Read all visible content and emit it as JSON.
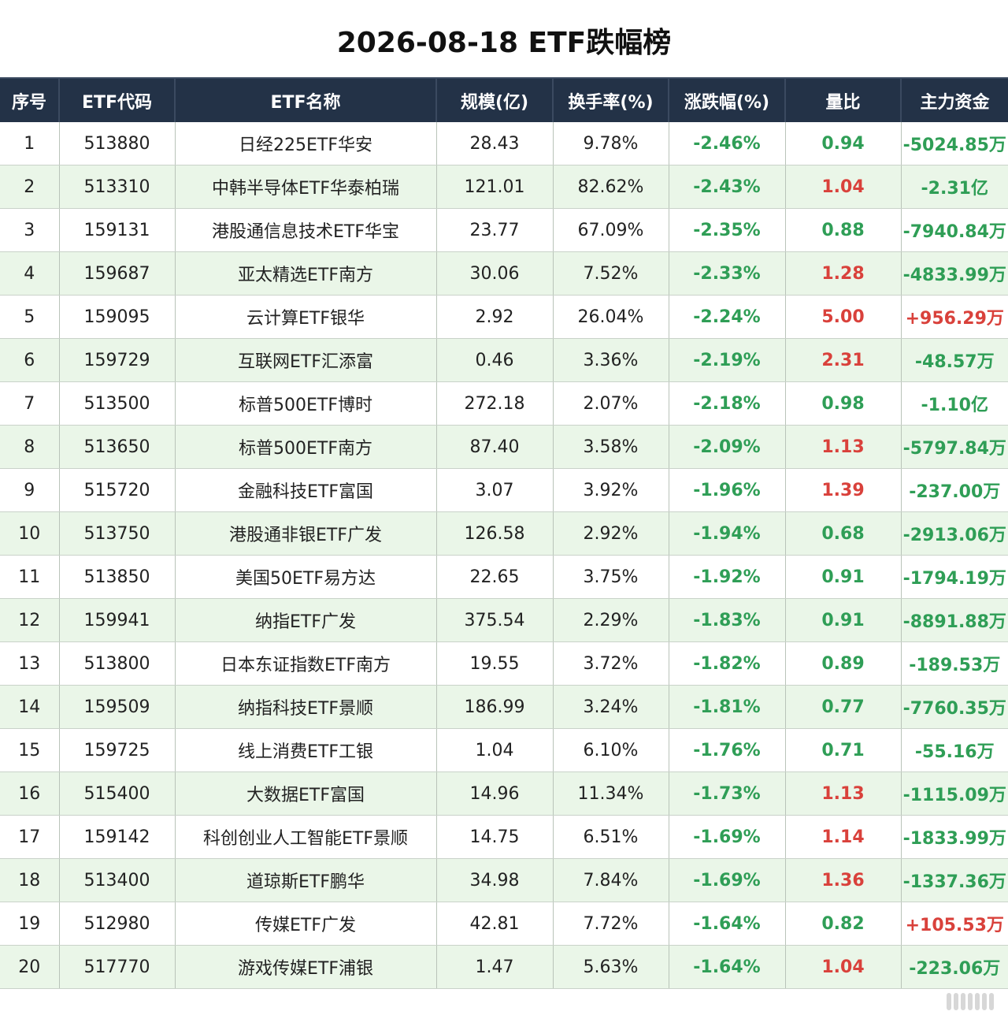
{
  "title": "2026-08-18 ETF跌幅榜",
  "colors": {
    "header_bg": "#233247",
    "down": "#2f9e56",
    "up": "#d9413b",
    "row_alt": "#eaf6e8"
  },
  "columns": [
    "序号",
    "ETF代码",
    "ETF名称",
    "规模(亿)",
    "换手率(%)",
    "涨跌幅(%)",
    "量比",
    "主力资金"
  ],
  "rows": [
    {
      "rank": "1",
      "code": "513880",
      "name": "日经225ETF华安",
      "scale": "28.43",
      "turnover": "9.78%",
      "change": "-2.46%",
      "ratio": "0.94",
      "ratio_up": false,
      "flow": "-5024.85万",
      "flow_up": false
    },
    {
      "rank": "2",
      "code": "513310",
      "name": "中韩半导体ETF华泰柏瑞",
      "scale": "121.01",
      "turnover": "82.62%",
      "change": "-2.43%",
      "ratio": "1.04",
      "ratio_up": true,
      "flow": "-2.31亿",
      "flow_up": false
    },
    {
      "rank": "3",
      "code": "159131",
      "name": "港股通信息技术ETF华宝",
      "scale": "23.77",
      "turnover": "67.09%",
      "change": "-2.35%",
      "ratio": "0.88",
      "ratio_up": false,
      "flow": "-7940.84万",
      "flow_up": false
    },
    {
      "rank": "4",
      "code": "159687",
      "name": "亚太精选ETF南方",
      "scale": "30.06",
      "turnover": "7.52%",
      "change": "-2.33%",
      "ratio": "1.28",
      "ratio_up": true,
      "flow": "-4833.99万",
      "flow_up": false
    },
    {
      "rank": "5",
      "code": "159095",
      "name": "云计算ETF银华",
      "scale": "2.92",
      "turnover": "26.04%",
      "change": "-2.24%",
      "ratio": "5.00",
      "ratio_up": true,
      "flow": "+956.29万",
      "flow_up": true
    },
    {
      "rank": "6",
      "code": "159729",
      "name": "互联网ETF汇添富",
      "scale": "0.46",
      "turnover": "3.36%",
      "change": "-2.19%",
      "ratio": "2.31",
      "ratio_up": true,
      "flow": "-48.57万",
      "flow_up": false
    },
    {
      "rank": "7",
      "code": "513500",
      "name": "标普500ETF博时",
      "scale": "272.18",
      "turnover": "2.07%",
      "change": "-2.18%",
      "ratio": "0.98",
      "ratio_up": false,
      "flow": "-1.10亿",
      "flow_up": false
    },
    {
      "rank": "8",
      "code": "513650",
      "name": "标普500ETF南方",
      "scale": "87.40",
      "turnover": "3.58%",
      "change": "-2.09%",
      "ratio": "1.13",
      "ratio_up": true,
      "flow": "-5797.84万",
      "flow_up": false
    },
    {
      "rank": "9",
      "code": "515720",
      "name": "金融科技ETF富国",
      "scale": "3.07",
      "turnover": "3.92%",
      "change": "-1.96%",
      "ratio": "1.39",
      "ratio_up": true,
      "flow": "-237.00万",
      "flow_up": false
    },
    {
      "rank": "10",
      "code": "513750",
      "name": "港股通非银ETF广发",
      "scale": "126.58",
      "turnover": "2.92%",
      "change": "-1.94%",
      "ratio": "0.68",
      "ratio_up": false,
      "flow": "-2913.06万",
      "flow_up": false
    },
    {
      "rank": "11",
      "code": "513850",
      "name": "美国50ETF易方达",
      "scale": "22.65",
      "turnover": "3.75%",
      "change": "-1.92%",
      "ratio": "0.91",
      "ratio_up": false,
      "flow": "-1794.19万",
      "flow_up": false
    },
    {
      "rank": "12",
      "code": "159941",
      "name": "纳指ETF广发",
      "scale": "375.54",
      "turnover": "2.29%",
      "change": "-1.83%",
      "ratio": "0.91",
      "ratio_up": false,
      "flow": "-8891.88万",
      "flow_up": false
    },
    {
      "rank": "13",
      "code": "513800",
      "name": "日本东证指数ETF南方",
      "scale": "19.55",
      "turnover": "3.72%",
      "change": "-1.82%",
      "ratio": "0.89",
      "ratio_up": false,
      "flow": "-189.53万",
      "flow_up": false
    },
    {
      "rank": "14",
      "code": "159509",
      "name": "纳指科技ETF景顺",
      "scale": "186.99",
      "turnover": "3.24%",
      "change": "-1.81%",
      "ratio": "0.77",
      "ratio_up": false,
      "flow": "-7760.35万",
      "flow_up": false
    },
    {
      "rank": "15",
      "code": "159725",
      "name": "线上消费ETF工银",
      "scale": "1.04",
      "turnover": "6.10%",
      "change": "-1.76%",
      "ratio": "0.71",
      "ratio_up": false,
      "flow": "-55.16万",
      "flow_up": false
    },
    {
      "rank": "16",
      "code": "515400",
      "name": "大数据ETF富国",
      "scale": "14.96",
      "turnover": "11.34%",
      "change": "-1.73%",
      "ratio": "1.13",
      "ratio_up": true,
      "flow": "-1115.09万",
      "flow_up": false
    },
    {
      "rank": "17",
      "code": "159142",
      "name": "科创创业人工智能ETF景顺",
      "scale": "14.75",
      "turnover": "6.51%",
      "change": "-1.69%",
      "ratio": "1.14",
      "ratio_up": true,
      "flow": "-1833.99万",
      "flow_up": false
    },
    {
      "rank": "18",
      "code": "513400",
      "name": "道琼斯ETF鹏华",
      "scale": "34.98",
      "turnover": "7.84%",
      "change": "-1.69%",
      "ratio": "1.36",
      "ratio_up": true,
      "flow": "-1337.36万",
      "flow_up": false
    },
    {
      "rank": "19",
      "code": "512980",
      "name": "传媒ETF广发",
      "scale": "42.81",
      "turnover": "7.72%",
      "change": "-1.64%",
      "ratio": "0.82",
      "ratio_up": false,
      "flow": "+105.53万",
      "flow_up": true
    },
    {
      "rank": "20",
      "code": "517770",
      "name": "游戏传媒ETF浦银",
      "scale": "1.47",
      "turnover": "5.63%",
      "change": "-1.64%",
      "ratio": "1.04",
      "ratio_up": true,
      "flow": "-223.06万",
      "flow_up": false
    }
  ]
}
